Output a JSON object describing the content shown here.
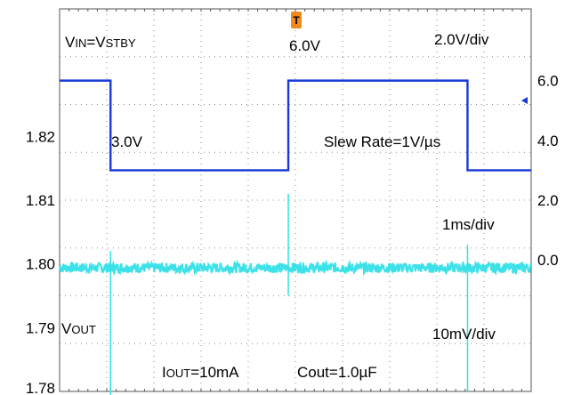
{
  "chart_data": {
    "type": "line",
    "title": "",
    "grid": true,
    "x": {
      "div_count": 10,
      "label": "1ms/div",
      "range_ms": [
        0,
        10
      ]
    },
    "channels": [
      {
        "name_label": "VIN=VSTBY",
        "name_main": "V",
        "name_sub1": "IN",
        "name_eq": "=V",
        "name_sub2": "STBY",
        "scale_label": "2.0V/div",
        "color": "#1a3ad6",
        "ylim": [
          -4.4,
          8.4
        ],
        "tick_values": [
          6.0,
          4.0,
          2.0,
          0.0
        ],
        "tick_labels": [
          "6.0",
          "4.0",
          "2.0",
          "0.0"
        ],
        "segments": [
          {
            "t": [
              0.0,
              1.08
            ],
            "v": 6.0
          },
          {
            "t": [
              1.08,
              4.85
            ],
            "v": 3.0
          },
          {
            "t": [
              4.85,
              8.65
            ],
            "v": 6.0
          },
          {
            "t": [
              8.65,
              10.0
            ],
            "v": 3.0
          }
        ],
        "annotations": [
          "6.0V",
          "3.0V",
          "Slew Rate=1V/µs"
        ]
      },
      {
        "name_main": "V",
        "name_sub": "OUT",
        "scale_label": "10mV/div",
        "color": "#33e0e8",
        "ylim": [
          1.78,
          1.84
        ],
        "tick_values": [
          1.82,
          1.81,
          1.8,
          1.79,
          1.78
        ],
        "tick_labels": [
          "1.82",
          "1.81",
          "1.80",
          "1.79",
          "1.78"
        ],
        "baseline_v": 1.7994,
        "spikes": [
          {
            "t": 1.08,
            "up": 1.802,
            "down": 1.777
          },
          {
            "t": 4.85,
            "up": 1.811,
            "down": 1.795
          },
          {
            "t": 8.65,
            "up": 1.803,
            "down": 1.78
          }
        ]
      }
    ],
    "conditions": {
      "iout_main": "I",
      "iout_sub": "OUT",
      "iout_value": "=10mA",
      "cout": "Cout=1.0µF"
    },
    "trigger_marker": "T"
  }
}
